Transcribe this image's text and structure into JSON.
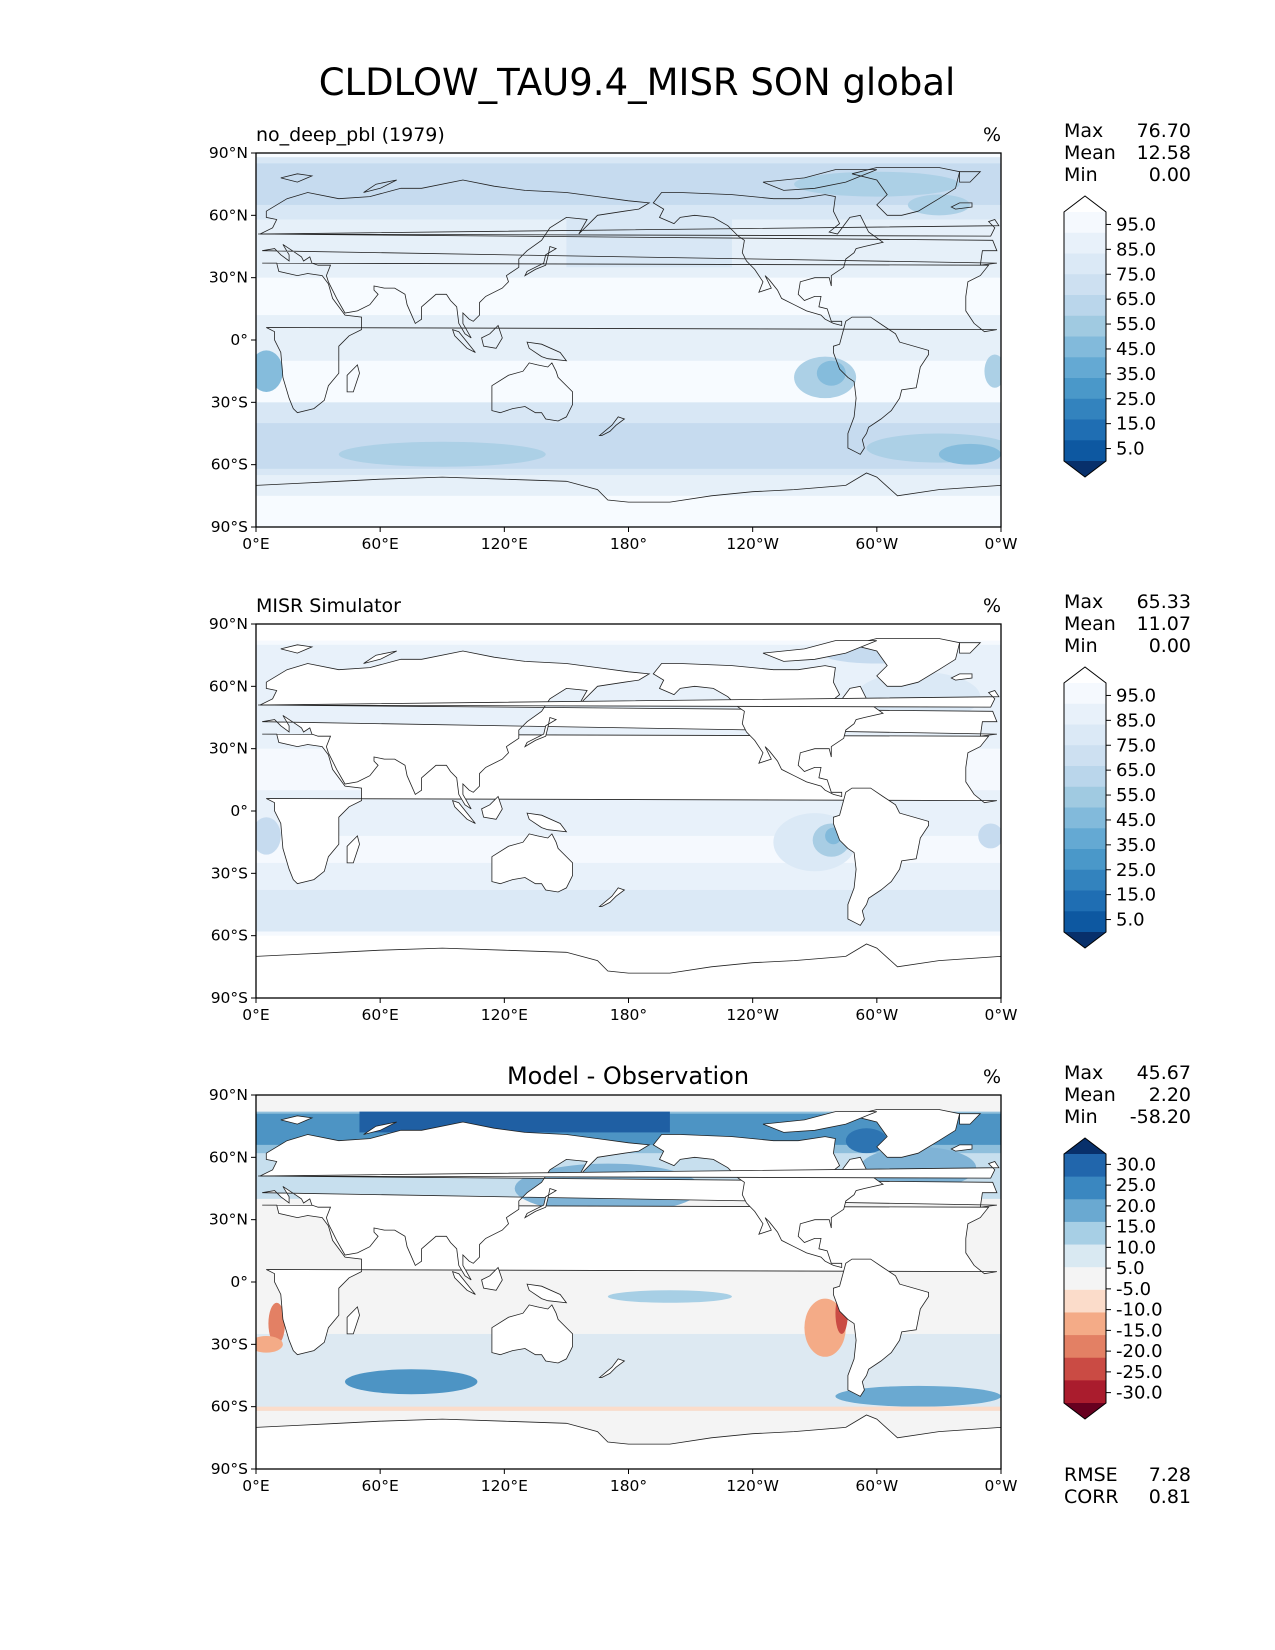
{
  "figure": {
    "title": "CLDLOW_TAU9.4_MISR SON global"
  },
  "axes": {
    "lat_ticks": [
      "90°N",
      "60°N",
      "30°N",
      "0°",
      "30°S",
      "60°S",
      "90°S"
    ],
    "lon_ticks": [
      "0°E",
      "60°E",
      "120°E",
      "180°",
      "120°W",
      "60°W",
      "0°W"
    ]
  },
  "chart_data": [
    {
      "type": "heatmap",
      "panel": "test",
      "left_title": "no_deep_pbl (1979)",
      "center_title": "",
      "units": "%",
      "stats": [
        {
          "label": "Max",
          "value": "76.70"
        },
        {
          "label": "Mean",
          "value": "12.58"
        },
        {
          "label": "Min",
          "value": "0.00"
        }
      ],
      "xlim": [
        0,
        360
      ],
      "ylim": [
        -90,
        90
      ],
      "colorbar": {
        "cmap": "Blues",
        "levels": [
          0,
          5,
          10,
          15,
          20,
          25,
          30,
          35,
          40,
          45,
          50,
          55,
          60,
          65,
          70,
          75,
          80,
          85,
          90,
          95,
          100
        ],
        "tick_labels": [
          "95.0",
          "85.0",
          "75.0",
          "65.0",
          "55.0",
          "45.0",
          "35.0",
          "25.0",
          "15.0",
          "5.0"
        ],
        "colors": [
          "#ffffff",
          "#f5f9fe",
          "#e8f1fa",
          "#dbe9f6",
          "#cde0f1",
          "#bad6eb",
          "#a0cae1",
          "#82badb",
          "#64a9d3",
          "#4a98c9",
          "#3383be",
          "#1f6eb3",
          "#0d58a1",
          "#08306b"
        ]
      },
      "rmse_corr": []
    },
    {
      "type": "heatmap",
      "panel": "reference",
      "left_title": "MISR Simulator",
      "center_title": "",
      "units": "%",
      "stats": [
        {
          "label": "Max",
          "value": "65.33"
        },
        {
          "label": "Mean",
          "value": "11.07"
        },
        {
          "label": "Min",
          "value": "0.00"
        }
      ],
      "xlim": [
        0,
        360
      ],
      "ylim": [
        -90,
        90
      ],
      "colorbar": {
        "cmap": "Blues",
        "levels": [
          0,
          5,
          10,
          15,
          20,
          25,
          30,
          35,
          40,
          45,
          50,
          55,
          60,
          65,
          70,
          75,
          80,
          85,
          90,
          95,
          100
        ],
        "tick_labels": [
          "95.0",
          "85.0",
          "75.0",
          "65.0",
          "55.0",
          "45.0",
          "35.0",
          "25.0",
          "15.0",
          "5.0"
        ],
        "colors": [
          "#ffffff",
          "#f5f9fe",
          "#e8f1fa",
          "#dbe9f6",
          "#cde0f1",
          "#bad6eb",
          "#a0cae1",
          "#82badb",
          "#64a9d3",
          "#4a98c9",
          "#3383be",
          "#1f6eb3",
          "#0d58a1",
          "#08306b"
        ]
      },
      "rmse_corr": []
    },
    {
      "type": "heatmap",
      "panel": "difference",
      "left_title": "",
      "center_title": "Model - Observation",
      "units": "%",
      "stats": [
        {
          "label": "Max",
          "value": "45.67"
        },
        {
          "label": "Mean",
          "value": "2.20"
        },
        {
          "label": "Min",
          "value": "-58.20"
        }
      ],
      "xlim": [
        0,
        360
      ],
      "ylim": [
        -90,
        90
      ],
      "colorbar": {
        "cmap": "RdBu_r",
        "levels": [
          -30,
          -25,
          -20,
          -15,
          -10,
          -5,
          5,
          10,
          15,
          20,
          25,
          30
        ],
        "tick_labels": [
          "30.0",
          "25.0",
          "20.0",
          "15.0",
          "10.0",
          "5.0",
          "-5.0",
          "-10.0",
          "-15.0",
          "-20.0",
          "-25.0",
          "-30.0"
        ],
        "colors": [
          "#08306b",
          "#2166ac",
          "#3a87c0",
          "#6aa9d1",
          "#a7cfe5",
          "#d9e9f2",
          "#f4f4f4",
          "#fbdcca",
          "#f4ab87",
          "#e38064",
          "#ca4b44",
          "#aa1c2d",
          "#67001f"
        ]
      },
      "rmse_corr": [
        {
          "label": "RMSE",
          "value": "7.28"
        },
        {
          "label": "CORR",
          "value": "0.81"
        }
      ]
    }
  ]
}
